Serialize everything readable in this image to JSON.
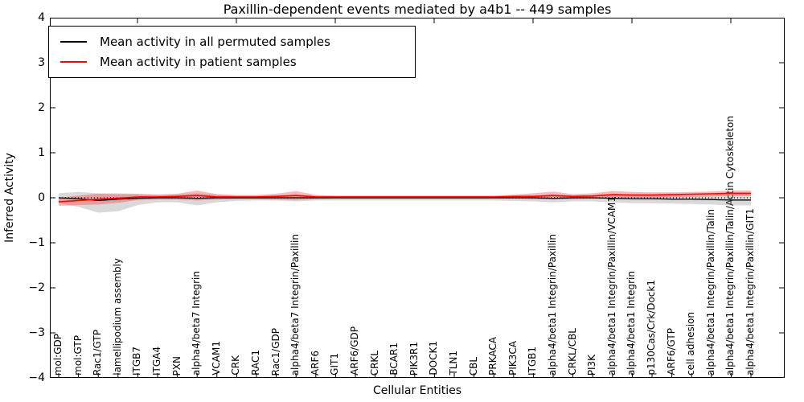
{
  "title": "Paxillin-dependent events mediated by a4b1 -- 449 samples",
  "x_axis": {
    "label": "Cellular Entities"
  },
  "y_axis": {
    "label": "Inferred Activity",
    "ticks": [
      "4",
      "3",
      "2",
      "1",
      "0",
      "−1",
      "−2",
      "−3",
      "−4"
    ]
  },
  "legend": {
    "items": [
      {
        "label": "Mean activity in all permuted samples",
        "color": "#000000"
      },
      {
        "label": "Mean activity in patient samples",
        "color": "#ff0000"
      }
    ]
  },
  "chart_data": {
    "type": "line",
    "title": "Paxillin-dependent events mediated by a4b1 -- 449 samples",
    "xlabel": "Cellular Entities",
    "ylabel": "Inferred Activity",
    "ylim": [
      -4,
      4
    ],
    "grid": false,
    "legend_position": "upper left",
    "zero_line_style": "dotted",
    "categories": [
      "mol:GDP",
      "mol:GTP",
      "Rac1/GTP",
      "lamellipodium assembly",
      "ITGB7",
      "ITGA4",
      "PXN",
      "alpha4/beta7 Integrin",
      "VCAM1",
      "CRK",
      "RAC1",
      "Rac1/GDP",
      "alpha4/beta7 Integrin/Paxillin",
      "ARF6",
      "GIT1",
      "ARF6/GDP",
      "CRKL",
      "BCAR1",
      "PIK3R1",
      "DOCK1",
      "TLN1",
      "CBL",
      "PRKACA",
      "PIK3CA",
      "ITGB1",
      "alpha4/beta1 Integrin/Paxillin",
      "CRKL/CBL",
      "PI3K",
      "alpha4/beta1 Integrin/Paxillin/VCAM1",
      "alpha4/beta1 Integrin",
      "p130Cas/Crk/Dock1",
      "ARF6/GTP",
      "cell adhesion",
      "alpha4/beta1 Integrin/Paxillin/Talin",
      "alpha4/beta1 Integrin/Paxillin/Talin/Actin Cytoskeleton",
      "alpha4/beta1 Integrin/Paxillin/GIT1"
    ],
    "series": [
      {
        "name": "Mean activity in all permuted samples",
        "color": "#000000",
        "values": [
          0,
          -0.02,
          -0.06,
          -0.03,
          -0.01,
          0,
          0,
          -0.01,
          0,
          0,
          0,
          0,
          0,
          0,
          0,
          0,
          0,
          0,
          0,
          0,
          0,
          0,
          0,
          0,
          0,
          -0.01,
          0,
          0,
          -0.01,
          -0.02,
          -0.02,
          -0.03,
          -0.03,
          -0.04,
          -0.05,
          -0.05
        ],
        "band": {
          "upper": [
            0.1,
            0.13,
            0.1,
            0.1,
            0.09,
            0.07,
            0.07,
            0.1,
            0.07,
            0.05,
            0.05,
            0.05,
            0.07,
            0.05,
            0.04,
            0.04,
            0.04,
            0.04,
            0.04,
            0.04,
            0.04,
            0.04,
            0.04,
            0.05,
            0.05,
            0.07,
            0.05,
            0.06,
            0.07,
            0.07,
            0.07,
            0.07,
            0.08,
            0.08,
            0.09,
            0.09
          ],
          "lower": [
            -0.12,
            -0.2,
            -0.33,
            -0.3,
            -0.16,
            -0.1,
            -0.1,
            -0.17,
            -0.1,
            -0.07,
            -0.06,
            -0.06,
            -0.08,
            -0.06,
            -0.06,
            -0.06,
            -0.06,
            -0.06,
            -0.06,
            -0.06,
            -0.06,
            -0.06,
            -0.06,
            -0.07,
            -0.08,
            -0.1,
            -0.08,
            -0.08,
            -0.1,
            -0.12,
            -0.12,
            -0.13,
            -0.14,
            -0.15,
            -0.17,
            -0.17
          ],
          "color": "rgba(120,120,120,0.28)"
        }
      },
      {
        "name": "Mean activity in patient samples",
        "color": "#ff0000",
        "values": [
          -0.09,
          -0.06,
          -0.03,
          -0.01,
          0.02,
          0.02,
          0.03,
          0.05,
          0.02,
          0.02,
          0.02,
          0.03,
          0.05,
          0.02,
          0.02,
          0.02,
          0.02,
          0.02,
          0.02,
          0.02,
          0.02,
          0.02,
          0.02,
          0.03,
          0.03,
          0.05,
          0.03,
          0.04,
          0.07,
          0.06,
          0.06,
          0.07,
          0.08,
          0.09,
          0.1,
          0.1
        ],
        "band": {
          "upper": [
            0,
            0.05,
            0.09,
            0.08,
            0.08,
            0.07,
            0.09,
            0.16,
            0.08,
            0.06,
            0.06,
            0.09,
            0.15,
            0.06,
            0.05,
            0.05,
            0.05,
            0.05,
            0.05,
            0.05,
            0.05,
            0.05,
            0.05,
            0.07,
            0.1,
            0.14,
            0.08,
            0.1,
            0.15,
            0.13,
            0.12,
            0.12,
            0.13,
            0.14,
            0.16,
            0.16
          ],
          "lower": [
            -0.18,
            -0.16,
            -0.15,
            -0.11,
            -0.05,
            -0.04,
            -0.04,
            -0.06,
            -0.04,
            -0.03,
            -0.03,
            -0.04,
            -0.05,
            -0.03,
            -0.02,
            -0.02,
            -0.02,
            -0.02,
            -0.02,
            -0.02,
            -0.02,
            -0.02,
            -0.02,
            -0.02,
            -0.03,
            -0.04,
            -0.03,
            -0.02,
            -0.01,
            0,
            0,
            0.01,
            0.02,
            0.03,
            0.04,
            0.04
          ],
          "color": "rgba(255,30,30,0.32)"
        }
      }
    ]
  }
}
